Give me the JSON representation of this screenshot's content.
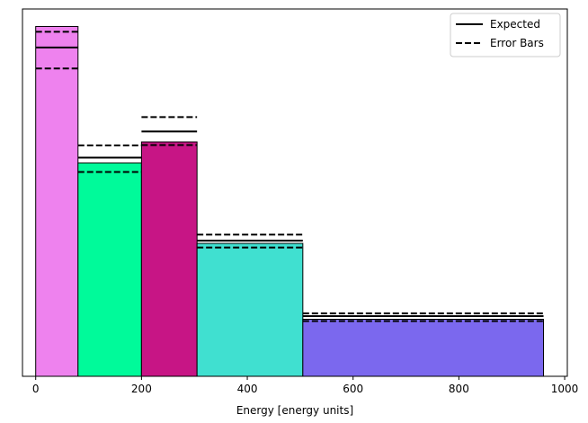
{
  "chart_data": {
    "type": "bar",
    "subtype": "histogram",
    "xlabel": "Energy [energy units]",
    "ylabel": "",
    "xlim": [
      -25,
      1005
    ],
    "ylim": [
      0,
      1.05
    ],
    "y_axis_ticks_shown": false,
    "xticks": [
      0,
      200,
      400,
      600,
      800,
      1000
    ],
    "xtick_labels": [
      "0",
      "200",
      "400",
      "600",
      "800",
      "1000"
    ],
    "grid": false,
    "legend": {
      "placement": "top-right",
      "entries": [
        {
          "label": "Expected",
          "style": "solid",
          "color": "#000000"
        },
        {
          "label": "Error Bars",
          "style": "dashed",
          "color": "#000000"
        }
      ]
    },
    "bins": [
      {
        "x0": 0,
        "x1": 80,
        "value": 1.0,
        "color": "#ee82ee",
        "expected": 0.94,
        "error_upper": 0.985,
        "error_lower": 0.88
      },
      {
        "x0": 80,
        "x1": 200,
        "value": 0.61,
        "color": "#00fa9a",
        "expected": 0.625,
        "error_upper": 0.66,
        "error_lower": 0.584
      },
      {
        "x0": 200,
        "x1": 305,
        "value": 0.67,
        "color": "#c71585",
        "expected": 0.7,
        "error_upper": 0.741,
        "error_lower": 0.661
      },
      {
        "x0": 305,
        "x1": 505,
        "value": 0.38,
        "color": "#40e0d0",
        "expected": 0.388,
        "error_upper": 0.405,
        "error_lower": 0.368
      },
      {
        "x0": 505,
        "x1": 960,
        "value": 0.163,
        "color": "#7b68ee",
        "expected": 0.172,
        "error_upper": 0.18,
        "error_lower": 0.158
      }
    ]
  }
}
